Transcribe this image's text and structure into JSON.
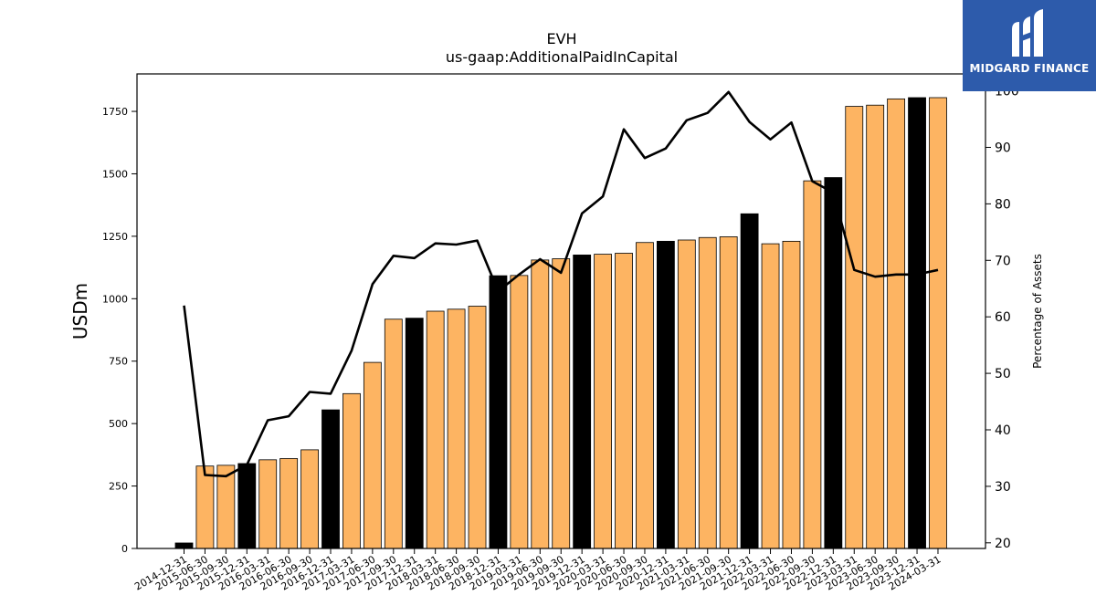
{
  "logo": {
    "text": "MIDGARD FINANCE",
    "icon": "midgard-m-icon",
    "background": "#2d5bab"
  },
  "chart_data": {
    "type": "bar",
    "title": "EVH",
    "subtitle": "us-gaap:AdditionalPaidInCapital",
    "ylabel": "USDm",
    "y2label": "Percentage of Assets",
    "ylim": [
      0,
      1900
    ],
    "y2lim": [
      19.0,
      103.0
    ],
    "yticks": [
      0,
      250,
      500,
      750,
      1000,
      1250,
      1500,
      1750
    ],
    "y2ticks": [
      20,
      30,
      40,
      50,
      60,
      70,
      80,
      90,
      100
    ],
    "grid": false,
    "colors": {
      "bar": "#fdb462",
      "bar_highlight": "#000000",
      "line": "#000000"
    },
    "categories": [
      "2014-12-31",
      "2015-06-30",
      "2015-09-30",
      "2015-12-31",
      "2016-03-31",
      "2016-06-30",
      "2016-09-30",
      "2016-12-31",
      "2017-03-31",
      "2017-06-30",
      "2017-09-30",
      "2017-12-31",
      "2018-03-31",
      "2018-06-30",
      "2018-09-30",
      "2018-12-31",
      "2019-03-31",
      "2019-06-30",
      "2019-09-30",
      "2019-12-31",
      "2020-03-31",
      "2020-06-30",
      "2020-09-30",
      "2020-12-31",
      "2021-03-31",
      "2021-06-30",
      "2021-09-30",
      "2021-12-31",
      "2022-03-31",
      "2022-06-30",
      "2022-09-30",
      "2022-12-31",
      "2023-03-31",
      "2023-06-30",
      "2023-09-30",
      "2023-12-31",
      "2024-03-31"
    ],
    "series": [
      {
        "type": "bar",
        "values": [
          22,
          330,
          333,
          340,
          355,
          360,
          395,
          555,
          620,
          745,
          918,
          922,
          950,
          958,
          970,
          1092,
          1093,
          1155,
          1160,
          1175,
          1178,
          1182,
          1225,
          1230,
          1235,
          1245,
          1248,
          1340,
          1220,
          1230,
          1472,
          1485,
          1770,
          1775,
          1800,
          1805,
          1805
        ],
        "highlight": [
          0,
          3,
          7,
          11,
          15,
          19,
          23,
          27,
          31,
          35
        ]
      },
      {
        "type": "line",
        "axis": "right",
        "values": [
          62.0,
          32.0,
          31.8,
          33.8,
          41.7,
          42.4,
          46.7,
          46.4,
          54.0,
          65.8,
          70.8,
          70.4,
          73.0,
          72.8,
          73.5,
          64.5,
          67.5,
          70.2,
          67.8,
          78.3,
          81.3,
          93.2,
          88.1,
          89.8,
          94.8,
          96.1,
          99.8,
          94.5,
          91.4,
          94.4,
          84.0,
          82.0,
          68.3,
          67.1,
          67.5,
          67.5,
          68.3
        ]
      }
    ]
  }
}
